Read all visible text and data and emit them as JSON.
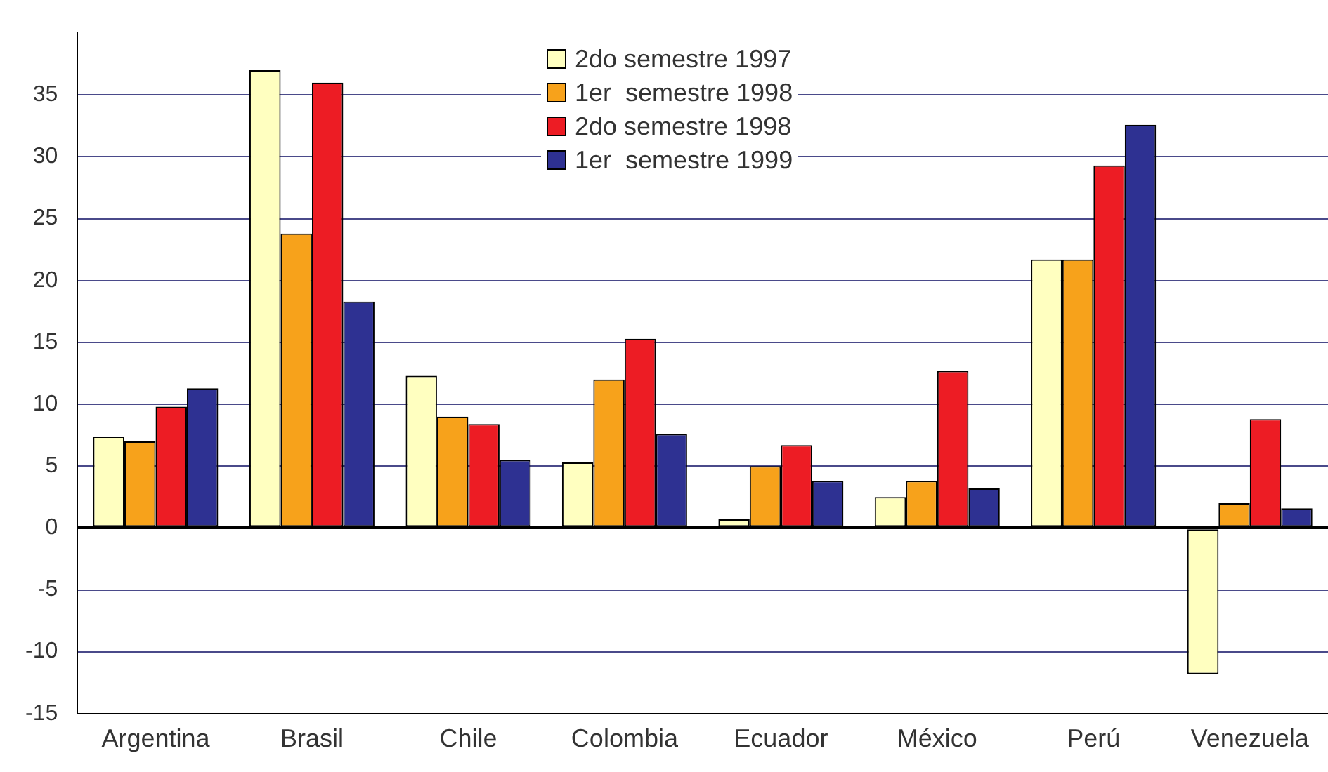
{
  "chart_data": {
    "type": "bar",
    "categories": [
      "Argentina",
      "Brasil",
      "Chile",
      "Colombia",
      "Ecuador",
      "México",
      "Perú",
      "Venezuela"
    ],
    "series": [
      {
        "name": "2do semestre 1997",
        "color": "#ffffc0",
        "values": [
          7.4,
          37.0,
          12.3,
          5.3,
          0.7,
          2.5,
          21.7,
          -11.8
        ]
      },
      {
        "name": "1er  semestre 1998",
        "color": "#f7a21b",
        "values": [
          7.0,
          23.8,
          9.0,
          12.0,
          5.0,
          3.8,
          21.7,
          2.0
        ]
      },
      {
        "name": "2do semestre 1998",
        "color": "#ed1c24",
        "values": [
          9.8,
          36.0,
          8.4,
          15.3,
          6.7,
          12.7,
          29.3,
          8.8
        ]
      },
      {
        "name": "1er  semestre 1999",
        "color": "#2e3192",
        "values": [
          11.3,
          18.3,
          5.5,
          7.6,
          3.8,
          3.2,
          32.6,
          1.6
        ]
      }
    ],
    "ylim": [
      -15,
      40
    ],
    "yticks": [
      -15,
      -10,
      -5,
      0,
      5,
      10,
      15,
      20,
      25,
      30,
      35
    ],
    "grid": "y",
    "legend": "top"
  }
}
